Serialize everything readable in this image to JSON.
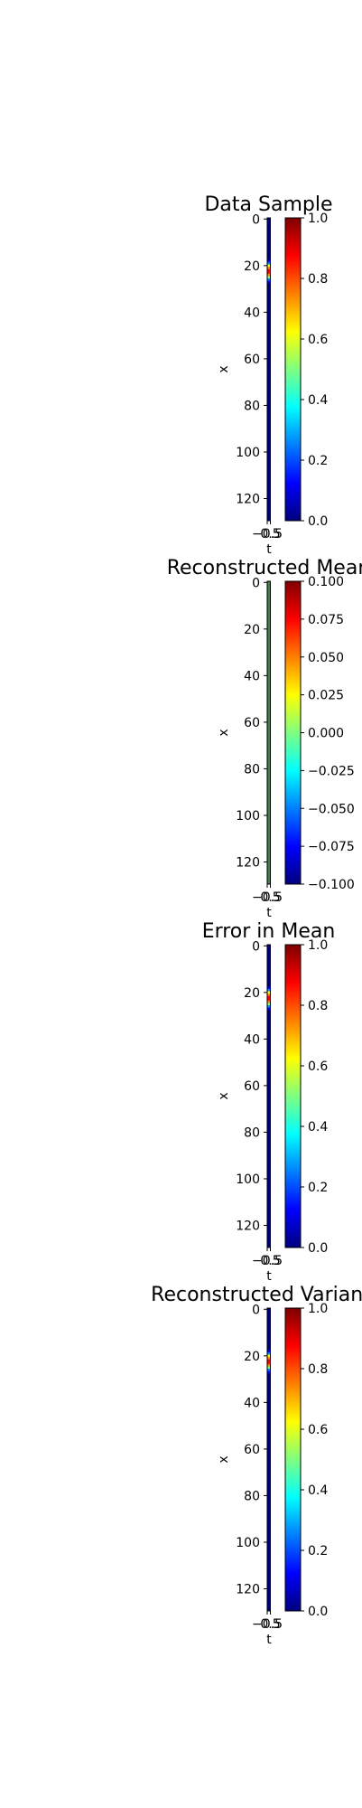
{
  "figure": {
    "background": "#ffffff"
  },
  "colormap": {
    "name": "jet",
    "stops": [
      "#00007f",
      "#0000ff",
      "#007fff",
      "#00ffff",
      "#7fff7f",
      "#ffff00",
      "#ff7f00",
      "#ff0000",
      "#7f0000"
    ]
  },
  "chart_data": [
    {
      "type": "heatmap",
      "title": "Data Sample",
      "xlabel": "t",
      "ylabel": "x",
      "x_ticks": [
        "−0.5",
        "0.5"
      ],
      "y_ticks": [
        "0",
        "20",
        "40",
        "60",
        "80",
        "100",
        "120"
      ],
      "ylim": [
        129.5,
        -0.5
      ],
      "n_rows": 130,
      "column_profile": {
        "low_color": "#00007f",
        "rows_18_to_29": [
          "#0000ff",
          "#007fff",
          "#ffff00",
          "#ff7f00",
          "#ff0000",
          "#ff0000",
          "#ff7f00",
          "#7fff7f",
          "#007fff",
          "#0000ff",
          "#00007f",
          "#00007f"
        ]
      },
      "colorbar": {
        "ticks": [
          "0.0",
          "0.2",
          "0.4",
          "0.6",
          "0.8",
          "1.0"
        ],
        "range": [
          0.0,
          1.0
        ]
      }
    },
    {
      "type": "heatmap",
      "title": "Reconstructed Mean",
      "xlabel": "t",
      "ylabel": "x",
      "x_ticks": [
        "−0.5",
        "0.5"
      ],
      "y_ticks": [
        "0",
        "20",
        "40",
        "60",
        "80",
        "100",
        "120"
      ],
      "ylim": [
        129.5,
        -0.5
      ],
      "n_rows": 130,
      "column_profile": {
        "uniform_color": "#4a7a4a"
      },
      "colorbar": {
        "ticks": [
          "−0.100",
          "−0.075",
          "−0.050",
          "−0.025",
          "0.000",
          "0.025",
          "0.050",
          "0.075",
          "0.100"
        ],
        "range": [
          -0.1,
          0.1
        ]
      }
    },
    {
      "type": "heatmap",
      "title": "Error in Mean",
      "xlabel": "t",
      "ylabel": "x",
      "x_ticks": [
        "−0.5",
        "0.5"
      ],
      "y_ticks": [
        "0",
        "20",
        "40",
        "60",
        "80",
        "100",
        "120"
      ],
      "ylim": [
        129.5,
        -0.5
      ],
      "n_rows": 130,
      "column_profile": {
        "low_color": "#00007f",
        "rows_18_to_29": [
          "#0000ff",
          "#007fff",
          "#ffff00",
          "#ff7f00",
          "#ff0000",
          "#ff0000",
          "#ff7f00",
          "#7fff7f",
          "#007fff",
          "#0000ff",
          "#00007f",
          "#00007f"
        ]
      },
      "colorbar": {
        "ticks": [
          "0.0",
          "0.2",
          "0.4",
          "0.6",
          "0.8",
          "1.0"
        ],
        "range": [
          0.0,
          1.0
        ]
      }
    },
    {
      "type": "heatmap",
      "title": "Reconstructed Variance",
      "xlabel": "t",
      "ylabel": "x",
      "x_ticks": [
        "−0.5",
        "0.5"
      ],
      "y_ticks": [
        "0",
        "20",
        "40",
        "60",
        "80",
        "100",
        "120"
      ],
      "ylim": [
        129.5,
        -0.5
      ],
      "n_rows": 130,
      "column_profile": {
        "low_color": "#00007f",
        "rows_18_to_29": [
          "#0000ff",
          "#007fff",
          "#ffff00",
          "#ff7f00",
          "#ff0000",
          "#ff0000",
          "#ff7f00",
          "#7fff7f",
          "#007fff",
          "#0000ff",
          "#00007f",
          "#00007f"
        ]
      },
      "colorbar": {
        "ticks": [
          "0.0",
          "0.2",
          "0.4",
          "0.6",
          "0.8",
          "1.0"
        ],
        "range": [
          0.0,
          1.0
        ]
      }
    }
  ]
}
